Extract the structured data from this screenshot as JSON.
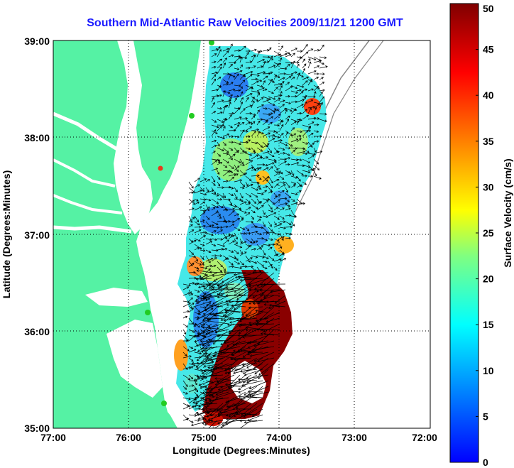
{
  "title": "Southern Mid-Atlantic Raw Velocities 2009/11/21 1200 GMT",
  "xlabel": "Longitude (Degrees:Minutes)",
  "ylabel": "Latitude (Degrees:Minutes)",
  "colorbar_label": "Surface Velocity (cm/s)",
  "x_ticks": [
    "77:00",
    "76:00",
    "75:00",
    "74:00",
    "73:00",
    "72:00"
  ],
  "y_ticks": [
    "39:00",
    "38:00",
    "37:00",
    "36:00",
    "35:00"
  ],
  "colorbar_ticks": [
    "50",
    "45",
    "40",
    "35",
    "30",
    "25",
    "20",
    "15",
    "10",
    "5",
    "0"
  ],
  "colors": {
    "land": "#55f2a4",
    "water": "#ffffff",
    "title": "#1a1aff",
    "station_green": "#22cc22",
    "station_red": "#e83a1a"
  },
  "chart_data": {
    "type": "heatmap",
    "xlim": [
      -77,
      -72
    ],
    "ylim": [
      35,
      39
    ],
    "clim": [
      0,
      50
    ],
    "colormap": "jet",
    "grid": true,
    "colorbar": "right"
  }
}
